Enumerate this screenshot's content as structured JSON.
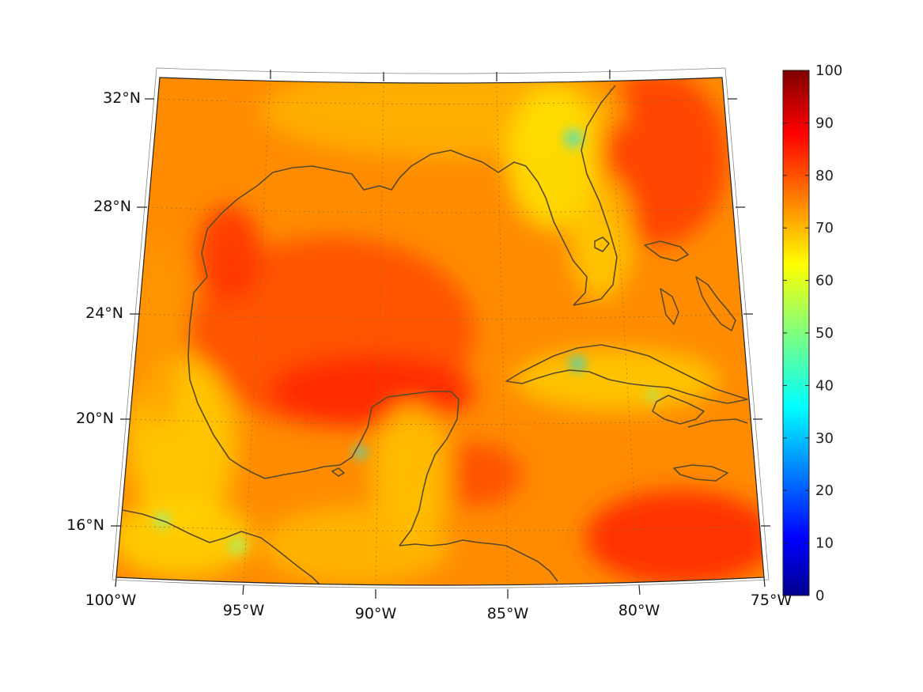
{
  "map": {
    "lat_labels": [
      "32°N",
      "28°N",
      "24°N",
      "20°N",
      "16°N"
    ],
    "lon_labels": [
      "100°W",
      "95°W",
      "90°W",
      "85°W",
      "80°W",
      "75°W"
    ],
    "colors": {
      "coastline": "#5a4a28",
      "gridline": "#8a6a30"
    }
  },
  "colorbar": {
    "min": 0,
    "max": 100,
    "ticks": [
      "0",
      "10",
      "20",
      "30",
      "40",
      "50",
      "60",
      "70",
      "80",
      "90",
      "100"
    ],
    "colormap": "jet"
  }
}
